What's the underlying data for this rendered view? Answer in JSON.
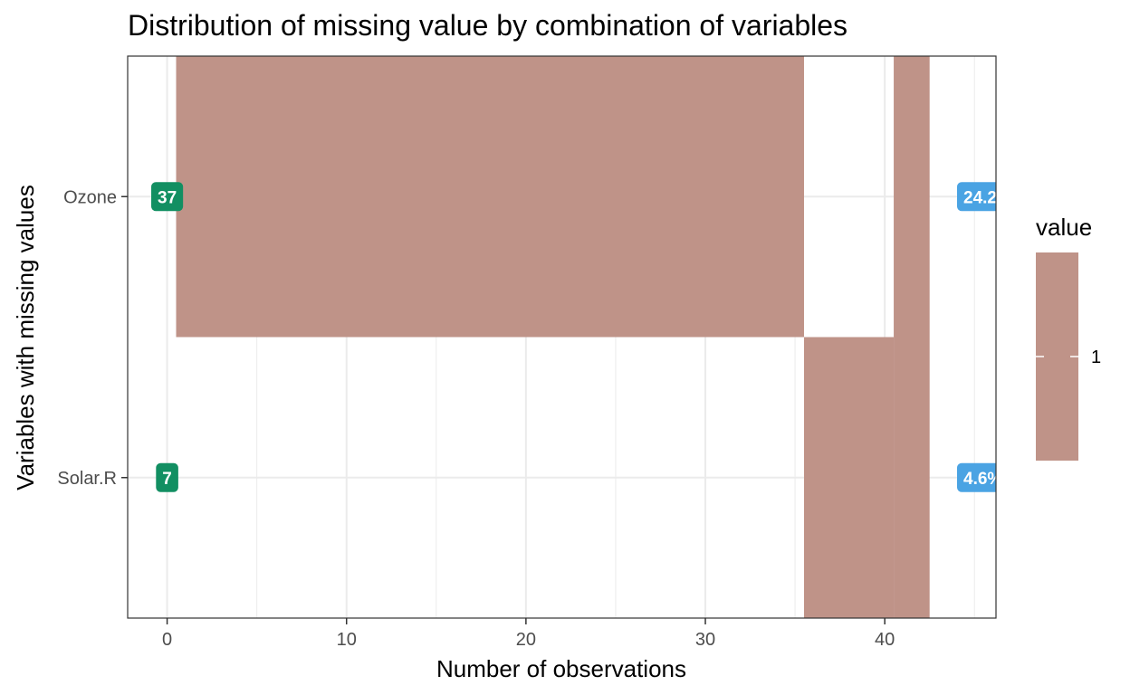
{
  "chart_data": {
    "type": "heatmap",
    "title": "Distribution of missing value by combination of variables",
    "xlabel": "Number of observations",
    "ylabel": "Variables with missing values",
    "xlim": [
      -2.2,
      46.2
    ],
    "x_ticks": [
      0,
      10,
      20,
      30,
      40
    ],
    "categories": [
      "Ozone",
      "Solar.R"
    ],
    "combinations": [
      {
        "variables": [
          "Ozone"
        ],
        "x_start": 0.5,
        "x_end": 35.5,
        "value": 1
      },
      {
        "variables": [
          "Solar.R"
        ],
        "x_start": 35.5,
        "x_end": 40.5,
        "value": 1
      },
      {
        "variables": [
          "Ozone",
          "Solar.R"
        ],
        "x_start": 40.5,
        "x_end": 42.5,
        "value": 1
      }
    ],
    "count_labels": [
      {
        "variable": "Ozone",
        "text": "37"
      },
      {
        "variable": "Solar.R",
        "text": "7"
      }
    ],
    "percent_labels": [
      {
        "variable": "Ozone",
        "text": "24.2"
      },
      {
        "variable": "Solar.R",
        "text": "4.6%"
      }
    ],
    "grid": true,
    "legend": {
      "title": "value",
      "label": "1",
      "placement": "right"
    },
    "colors": {
      "tile": "#BF9388",
      "count_badge": "#128F62",
      "percent_badge": "#4AA3E3",
      "grid": "#EBEBEB",
      "panel_border": "#333333"
    }
  }
}
